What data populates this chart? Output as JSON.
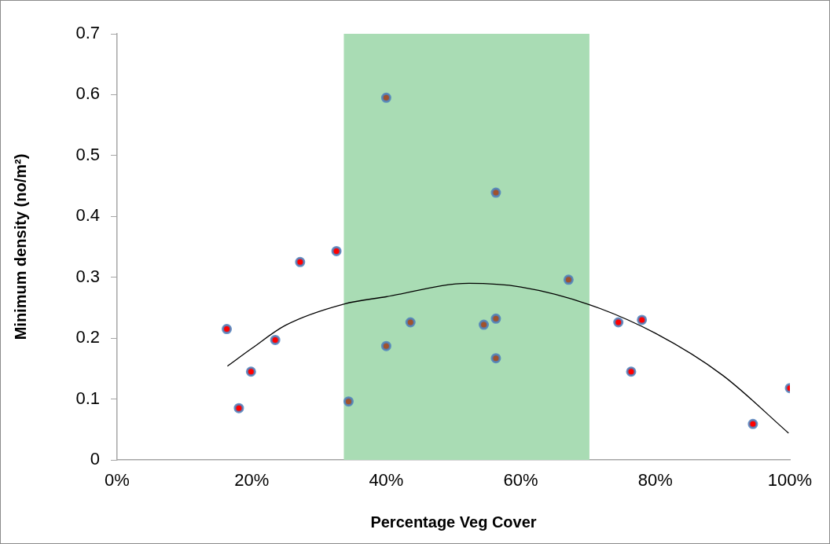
{
  "chart_data": {
    "type": "scatter",
    "xlabel": "Percentage Veg Cover",
    "ylabel": "Minimum density (no/m²)",
    "xlim": [
      0,
      100
    ],
    "ylim": [
      0,
      0.7
    ],
    "xticks": [
      {
        "value": 0,
        "label": "0%"
      },
      {
        "value": 20,
        "label": "20%"
      },
      {
        "value": 40,
        "label": "40%"
      },
      {
        "value": 60,
        "label": "60%"
      },
      {
        "value": 80,
        "label": "80%"
      },
      {
        "value": 100,
        "label": "100%"
      }
    ],
    "yticks": [
      0,
      0.1,
      0.2,
      0.3,
      0.4,
      0.5,
      0.6,
      0.7
    ],
    "grid": false,
    "legend": false,
    "marker": "circle",
    "bands": [
      {
        "axis": "x",
        "from": 33.7,
        "to": 70.2,
        "color": "#a9dcb4"
      }
    ],
    "series": [
      {
        "color": "#ff0000",
        "x": [
          16.3,
          18.1,
          19.9,
          23.5,
          27.2,
          32.6,
          74.5,
          76.4,
          78.0,
          94.5,
          100
        ],
        "values": [
          0.215,
          0.085,
          0.145,
          0.197,
          0.325,
          0.343,
          0.226,
          0.145,
          0.23,
          0.059,
          0.118
        ]
      },
      {
        "color": "#a0522d",
        "x": [
          34.4,
          40.0,
          40.0,
          43.6,
          54.5,
          56.3,
          56.3,
          56.3,
          67.1
        ],
        "values": [
          0.096,
          0.187,
          0.595,
          0.226,
          0.222,
          0.232,
          0.167,
          0.439,
          0.296
        ]
      },
      {
        "type": "line",
        "color": "#000000",
        "marker": "none",
        "x": [
          16.4,
          20,
          25,
          33.7,
          40,
          52.3,
          60,
          70.2,
          80,
          90,
          99.8
        ],
        "values": [
          0.154,
          0.183,
          0.221,
          0.256,
          0.268,
          0.29,
          0.284,
          0.255,
          0.208,
          0.139,
          0.044
        ]
      }
    ]
  }
}
